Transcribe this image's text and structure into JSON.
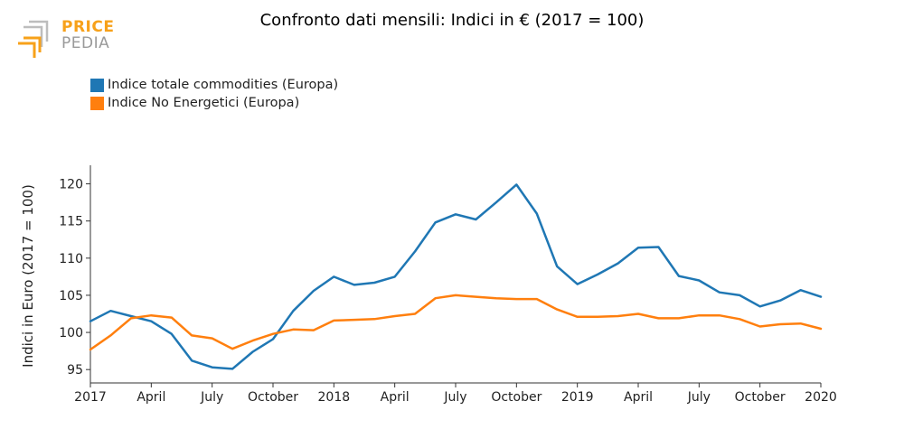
{
  "logo": {
    "word1": "PRICE",
    "word2": "PEDIA"
  },
  "chart_data": {
    "type": "line",
    "title": "Confronto dati mensili: Indici in € (2017 = 100)",
    "xlabel": "",
    "ylabel": "Indici in Euro (2017 = 100)",
    "ylim": [
      93.2,
      122.5
    ],
    "yticks": [
      95,
      100,
      105,
      110,
      115,
      120
    ],
    "x_range": [
      0,
      36
    ],
    "xticks": [
      {
        "pos": 0,
        "label": "2017"
      },
      {
        "pos": 3,
        "label": "April"
      },
      {
        "pos": 6,
        "label": "July"
      },
      {
        "pos": 9,
        "label": "October"
      },
      {
        "pos": 12,
        "label": "2018"
      },
      {
        "pos": 15,
        "label": "April"
      },
      {
        "pos": 18,
        "label": "July"
      },
      {
        "pos": 21,
        "label": "October"
      },
      {
        "pos": 24,
        "label": "2019"
      },
      {
        "pos": 27,
        "label": "April"
      },
      {
        "pos": 30,
        "label": "July"
      },
      {
        "pos": 33,
        "label": "October"
      },
      {
        "pos": 36,
        "label": "2020"
      }
    ],
    "series": [
      {
        "name": "Indice totale commodities (Europa)",
        "color": "#1f77b4",
        "x": [
          0,
          1,
          2,
          3,
          4,
          5,
          6,
          7,
          8,
          9,
          10,
          11,
          12,
          13,
          14,
          15,
          16,
          17,
          18,
          19,
          20,
          21,
          22,
          23,
          24,
          25,
          26,
          27,
          28,
          29,
          30,
          31,
          32,
          33,
          34,
          35,
          36
        ],
        "values": [
          101.5,
          102.9,
          102.2,
          101.5,
          99.8,
          96.2,
          95.3,
          95.1,
          97.4,
          99.1,
          102.9,
          105.6,
          107.5,
          106.4,
          106.7,
          107.5,
          110.9,
          114.8,
          115.9,
          115.2,
          117.5,
          119.9,
          116.0,
          108.9,
          106.5,
          107.8,
          109.3,
          111.4,
          111.5,
          107.6,
          107.0,
          105.4,
          105.0,
          103.5,
          104.3,
          105.7,
          104.8
        ]
      },
      {
        "name": "Indice No Energetici (Europa)",
        "color": "#ff7f0e",
        "x": [
          0,
          1,
          2,
          3,
          4,
          5,
          6,
          7,
          8,
          9,
          10,
          11,
          12,
          13,
          14,
          15,
          16,
          17,
          18,
          19,
          20,
          21,
          22,
          23,
          24,
          25,
          26,
          27,
          28,
          29,
          30,
          31,
          32,
          33,
          34,
          35,
          36
        ],
        "values": [
          97.7,
          99.6,
          101.9,
          102.3,
          102.0,
          99.6,
          99.2,
          97.8,
          98.9,
          99.8,
          100.4,
          100.3,
          101.6,
          101.7,
          101.8,
          102.2,
          102.5,
          104.6,
          105.0,
          104.8,
          104.6,
          104.5,
          104.5,
          103.1,
          102.1,
          102.1,
          102.2,
          102.5,
          101.9,
          101.9,
          102.3,
          102.3,
          101.8,
          100.8,
          101.1,
          101.2,
          100.5
        ]
      }
    ]
  }
}
